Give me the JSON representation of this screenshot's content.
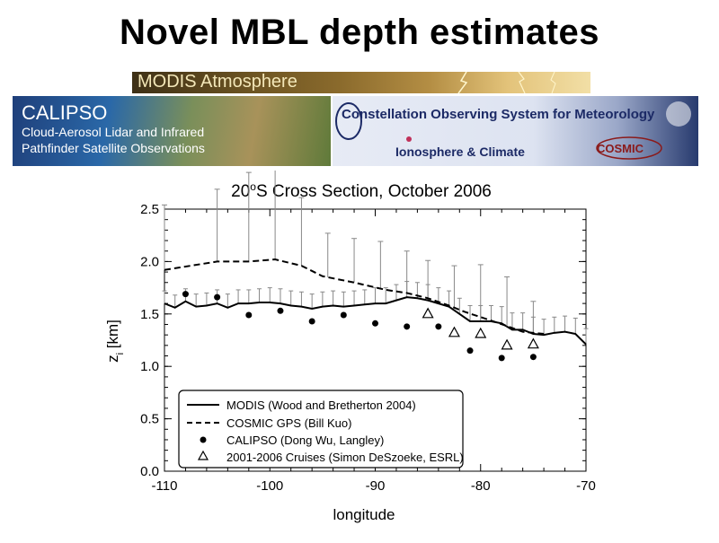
{
  "slide": {
    "title": "Novel MBL depth estimates"
  },
  "banners": {
    "modis": {
      "text": "MODIS Atmosphere"
    },
    "calipso": {
      "title": "CALIPSO",
      "line1": "Cloud-Aerosol Lidar and Infrared",
      "line2": "Pathfinder Satellite Observations"
    },
    "cosmic": {
      "line1": "Constellation Observing System for Meteorology",
      "line2": "Ionosphere & Climate",
      "logo": "COSMIC"
    }
  },
  "chart_data": {
    "type": "line",
    "title": "20°S Cross Section, October 2006",
    "title_base": "20",
    "title_superscript": "o",
    "title_rest": "S Cross Section, October 2006",
    "xlabel": "longitude",
    "ylabel": "z",
    "ylabel_subscript": "i",
    "ylabel_units": " [km]",
    "xlim": [
      -110,
      -70
    ],
    "ylim": [
      0,
      2.5
    ],
    "xticks": [
      -110,
      -100,
      -90,
      -80,
      -70
    ],
    "xtick_labels": [
      "-110",
      "-100",
      "-90",
      "-80",
      "-70"
    ],
    "yticks": [
      0,
      0.5,
      1.0,
      1.5,
      2.0,
      2.5
    ],
    "ytick_labels": [
      "0.0",
      "0.5",
      "1.0",
      "1.5",
      "2.0",
      "2.5"
    ],
    "legend_position": "bottom-left",
    "series": [
      {
        "name": "MODIS (Wood and Bretherton 2004)",
        "style": "solid",
        "x": [
          -110,
          -109,
          -108,
          -107,
          -106,
          -105,
          -104,
          -103,
          -102,
          -101,
          -100,
          -99,
          -98,
          -97,
          -96,
          -95,
          -94,
          -93,
          -92,
          -91,
          -90,
          -89,
          -88,
          -87,
          -86,
          -85,
          -84,
          -83,
          -82,
          -81,
          -80,
          -79,
          -78,
          -77,
          -76,
          -75,
          -74,
          -73,
          -72,
          -71,
          -70
        ],
        "y": [
          1.6,
          1.56,
          1.62,
          1.57,
          1.58,
          1.6,
          1.56,
          1.6,
          1.6,
          1.61,
          1.61,
          1.6,
          1.58,
          1.57,
          1.55,
          1.57,
          1.58,
          1.57,
          1.58,
          1.59,
          1.6,
          1.6,
          1.63,
          1.66,
          1.65,
          1.63,
          1.6,
          1.57,
          1.5,
          1.43,
          1.43,
          1.43,
          1.41,
          1.35,
          1.35,
          1.31,
          1.3,
          1.32,
          1.33,
          1.31,
          1.21
        ],
        "err_upper": [
          0.12,
          0.12,
          0.12,
          0.12,
          0.12,
          0.13,
          0.13,
          0.13,
          0.13,
          0.13,
          0.14,
          0.14,
          0.14,
          0.14,
          0.14,
          0.14,
          0.14,
          0.14,
          0.14,
          0.14,
          0.15,
          0.15,
          0.15,
          0.15,
          0.15,
          0.15,
          0.15,
          0.15,
          0.15,
          0.15,
          0.15,
          0.15,
          0.16,
          0.16,
          0.16,
          0.16,
          0.15,
          0.15,
          0.15,
          0.15,
          0.15
        ]
      },
      {
        "name": "COSMIC GPS (Bill Kuo)",
        "style": "dashed",
        "x": [
          -110,
          -105,
          -102,
          -99.5,
          -97,
          -95,
          -92,
          -89,
          -87,
          -85,
          -83,
          -81.5,
          -80,
          -78.5,
          -76,
          -74
        ],
        "y": [
          1.92,
          2.0,
          2.0,
          2.02,
          1.96,
          1.86,
          1.8,
          1.73,
          1.7,
          1.65,
          1.58,
          1.52,
          1.47,
          1.42,
          1.33,
          1.31
        ],
        "err_upper_x": [
          -110,
          -105,
          -102,
          -99.5,
          -97,
          -94.5,
          -92,
          -89.5,
          -87,
          -85,
          -82.5,
          -80,
          -77.5,
          -75
        ],
        "err_upper": [
          0.62,
          0.69,
          0.85,
          0.95,
          0.65,
          0.42,
          0.42,
          0.45,
          0.4,
          0.36,
          0.4,
          0.5,
          0.47,
          0.3
        ]
      },
      {
        "name": "CALIPSO (Dong Wu, Langley)",
        "style": "filled-circle",
        "x": [
          -108,
          -105,
          -102,
          -99,
          -96,
          -93,
          -90,
          -87,
          -84,
          -81,
          -78,
          -75
        ],
        "y": [
          1.69,
          1.66,
          1.49,
          1.53,
          1.43,
          1.49,
          1.41,
          1.38,
          1.38,
          1.15,
          1.08,
          1.09
        ]
      },
      {
        "name": "2001-2006 Cruises (Simon DeSzoeke, ESRL)",
        "style": "open-triangle",
        "x": [
          -85,
          -82.5,
          -80,
          -77.5,
          -75
        ],
        "y": [
          1.5,
          1.32,
          1.31,
          1.2,
          1.21
        ]
      }
    ]
  }
}
